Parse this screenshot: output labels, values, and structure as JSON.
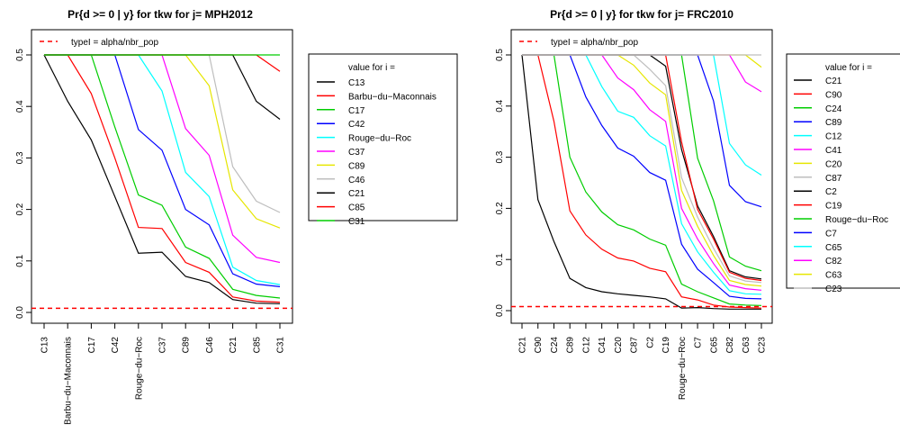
{
  "chart_data": [
    {
      "type": "line",
      "title": "Pr{d >= 0 | y} for tkw  for j= MPH2012",
      "xlabel": "",
      "ylabel": "",
      "ylim": [
        0,
        0.5
      ],
      "yticks": [
        "0.0",
        "0.1",
        "0.2",
        "0.3",
        "0.4",
        "0.5"
      ],
      "x": [
        "C13",
        "Barbu−du−Maconnais",
        "C17",
        "C42",
        "Rouge−du−Roc",
        "C37",
        "C89",
        "C46",
        "C21",
        "C85",
        "C31"
      ],
      "hline": {
        "label": "typeI = alpha/nbr_pop",
        "value": 0.008,
        "color": "#ff0000"
      },
      "legend_title": "value for i =",
      "legend_position": "right",
      "series": [
        {
          "name": "C13",
          "color": "#000000",
          "values": [
            0.5,
            0.41,
            0.335,
            0.225,
            0.115,
            0.117,
            0.07,
            0.058,
            0.025,
            0.018,
            0.017
          ]
        },
        {
          "name": "Barbu−du−Maconnais",
          "color": "#ff0000",
          "values": [
            0.5,
            0.5,
            0.425,
            0.3,
            0.165,
            0.163,
            0.097,
            0.078,
            0.03,
            0.022,
            0.02
          ]
        },
        {
          "name": "C17",
          "color": "#00cd00",
          "values": [
            0.5,
            0.5,
            0.5,
            0.36,
            0.228,
            0.208,
            0.127,
            0.105,
            0.045,
            0.033,
            0.028
          ]
        },
        {
          "name": "C42",
          "color": "#0000ff",
          "values": [
            0.5,
            0.5,
            0.5,
            0.5,
            0.355,
            0.315,
            0.2,
            0.17,
            0.075,
            0.055,
            0.05
          ]
        },
        {
          "name": "Rouge−du−Roc",
          "color": "#00ffff",
          "values": [
            0.5,
            0.5,
            0.5,
            0.5,
            0.5,
            0.43,
            0.272,
            0.225,
            0.088,
            0.062,
            0.054
          ]
        },
        {
          "name": "C37",
          "color": "#ff00ff",
          "values": [
            0.5,
            0.5,
            0.5,
            0.5,
            0.5,
            0.5,
            0.357,
            0.305,
            0.15,
            0.107,
            0.097
          ]
        },
        {
          "name": "C89",
          "color": "#e6e600",
          "values": [
            0.5,
            0.5,
            0.5,
            0.5,
            0.5,
            0.5,
            0.5,
            0.44,
            0.238,
            0.182,
            0.164
          ]
        },
        {
          "name": "C46",
          "color": "#bebebe",
          "values": [
            0.5,
            0.5,
            0.5,
            0.5,
            0.5,
            0.5,
            0.5,
            0.5,
            0.283,
            0.216,
            0.194
          ]
        },
        {
          "name": "C21",
          "color": "#000000",
          "values": [
            0.5,
            0.5,
            0.5,
            0.5,
            0.5,
            0.5,
            0.5,
            0.5,
            0.5,
            0.41,
            0.375
          ]
        },
        {
          "name": "C85",
          "color": "#ff0000",
          "values": [
            0.5,
            0.5,
            0.5,
            0.5,
            0.5,
            0.5,
            0.5,
            0.5,
            0.5,
            0.5,
            0.468
          ]
        },
        {
          "name": "C31",
          "color": "#00cd00",
          "values": [
            0.5,
            0.5,
            0.5,
            0.5,
            0.5,
            0.5,
            0.5,
            0.5,
            0.5,
            0.5,
            0.5
          ]
        }
      ]
    },
    {
      "type": "line",
      "title": "Pr{d >= 0 | y} for tkw  for j= FRC2010",
      "xlabel": "",
      "ylabel": "",
      "ylim": [
        0,
        0.5
      ],
      "yticks": [
        "0.0",
        "0.1",
        "0.2",
        "0.3",
        "0.4",
        "0.5"
      ],
      "x": [
        "C21",
        "C90",
        "C24",
        "C89",
        "C12",
        "C41",
        "C20",
        "C87",
        "C2",
        "C19",
        "Rouge−du−Roc",
        "C7",
        "C65",
        "C82",
        "C63",
        "C23"
      ],
      "hline": {
        "label": "typeI = alpha/nbr_pop",
        "value": 0.008,
        "color": "#ff0000"
      },
      "legend_title": "value for i =",
      "legend_position": "right",
      "series": [
        {
          "name": "C21",
          "color": "#000000",
          "values": [
            0.5,
            0.217,
            0.135,
            0.063,
            0.045,
            0.037,
            0.033,
            0.03,
            0.027,
            0.023,
            0.005,
            0.006,
            0.004,
            0.003,
            0.003,
            0.003
          ]
        },
        {
          "name": "C90",
          "color": "#ff0000",
          "values": [
            0.5,
            0.5,
            0.37,
            0.195,
            0.148,
            0.12,
            0.103,
            0.097,
            0.083,
            0.076,
            0.027,
            0.021,
            0.011,
            0.007,
            0.006,
            0.005
          ]
        },
        {
          "name": "C24",
          "color": "#00cd00",
          "values": [
            0.5,
            0.5,
            0.5,
            0.3,
            0.232,
            0.193,
            0.168,
            0.158,
            0.14,
            0.128,
            0.052,
            0.037,
            0.025,
            0.013,
            0.011,
            0.01
          ]
        },
        {
          "name": "C89",
          "color": "#0000ff",
          "values": [
            0.5,
            0.5,
            0.5,
            0.5,
            0.418,
            0.362,
            0.318,
            0.302,
            0.27,
            0.255,
            0.13,
            0.081,
            0.055,
            0.028,
            0.024,
            0.023
          ]
        },
        {
          "name": "C12",
          "color": "#00ffff",
          "values": [
            0.5,
            0.5,
            0.5,
            0.5,
            0.5,
            0.438,
            0.39,
            0.378,
            0.342,
            0.322,
            0.17,
            0.115,
            0.075,
            0.039,
            0.033,
            0.032
          ]
        },
        {
          "name": "C41",
          "color": "#ff00ff",
          "values": [
            0.5,
            0.5,
            0.5,
            0.5,
            0.5,
            0.5,
            0.455,
            0.432,
            0.393,
            0.37,
            0.2,
            0.14,
            0.092,
            0.05,
            0.043,
            0.04
          ]
        },
        {
          "name": "C20",
          "color": "#e6e600",
          "values": [
            0.5,
            0.5,
            0.5,
            0.5,
            0.5,
            0.5,
            0.5,
            0.48,
            0.445,
            0.422,
            0.235,
            0.165,
            0.108,
            0.059,
            0.051,
            0.048
          ]
        },
        {
          "name": "C87",
          "color": "#bebebe",
          "values": [
            0.5,
            0.5,
            0.5,
            0.5,
            0.5,
            0.5,
            0.5,
            0.5,
            0.472,
            0.44,
            0.26,
            0.183,
            0.122,
            0.068,
            0.058,
            0.055
          ]
        },
        {
          "name": "C2",
          "color": "#000000",
          "values": [
            0.5,
            0.5,
            0.5,
            0.5,
            0.5,
            0.5,
            0.5,
            0.5,
            0.5,
            0.478,
            0.315,
            0.205,
            0.145,
            0.078,
            0.066,
            0.062
          ]
        },
        {
          "name": "C19",
          "color": "#ff0000",
          "values": [
            0.5,
            0.5,
            0.5,
            0.5,
            0.5,
            0.5,
            0.5,
            0.5,
            0.5,
            0.5,
            0.33,
            0.198,
            0.14,
            0.075,
            0.063,
            0.059
          ]
        },
        {
          "name": "Rouge−du−Roc",
          "color": "#00cd00",
          "values": [
            0.5,
            0.5,
            0.5,
            0.5,
            0.5,
            0.5,
            0.5,
            0.5,
            0.5,
            0.5,
            0.5,
            0.298,
            0.215,
            0.105,
            0.087,
            0.078
          ]
        },
        {
          "name": "C7",
          "color": "#0000ff",
          "values": [
            0.5,
            0.5,
            0.5,
            0.5,
            0.5,
            0.5,
            0.5,
            0.5,
            0.5,
            0.5,
            0.5,
            0.5,
            0.41,
            0.245,
            0.213,
            0.203
          ]
        },
        {
          "name": "C65",
          "color": "#00ffff",
          "values": [
            0.5,
            0.5,
            0.5,
            0.5,
            0.5,
            0.5,
            0.5,
            0.5,
            0.5,
            0.5,
            0.5,
            0.5,
            0.5,
            0.327,
            0.285,
            0.265
          ]
        },
        {
          "name": "C82",
          "color": "#ff00ff",
          "values": [
            0.5,
            0.5,
            0.5,
            0.5,
            0.5,
            0.5,
            0.5,
            0.5,
            0.5,
            0.5,
            0.5,
            0.5,
            0.5,
            0.5,
            0.447,
            0.428
          ]
        },
        {
          "name": "C63",
          "color": "#e6e600",
          "values": [
            0.5,
            0.5,
            0.5,
            0.5,
            0.5,
            0.5,
            0.5,
            0.5,
            0.5,
            0.5,
            0.5,
            0.5,
            0.5,
            0.5,
            0.5,
            0.476
          ]
        },
        {
          "name": "C23",
          "color": "#bebebe",
          "values": [
            0.5,
            0.5,
            0.5,
            0.5,
            0.5,
            0.5,
            0.5,
            0.5,
            0.5,
            0.5,
            0.5,
            0.5,
            0.5,
            0.5,
            0.5,
            0.5
          ]
        }
      ]
    }
  ]
}
